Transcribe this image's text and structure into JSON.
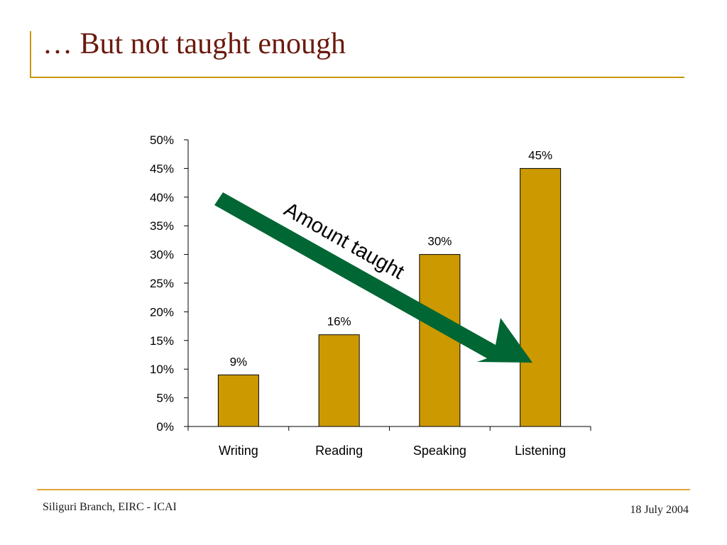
{
  "slide": {
    "title": "… But not taught enough",
    "footer_left": "Siliguri Branch, EIRC - ICAI",
    "footer_right": "18 July 2004"
  },
  "colors": {
    "bar": "#cc9900",
    "arrow": "#006633",
    "title": "#6b1a0e",
    "rule": "#c8960a"
  },
  "chart_data": {
    "type": "bar",
    "categories": [
      "Writing",
      "Reading",
      "Speaking",
      "Listening"
    ],
    "values": [
      9,
      16,
      30,
      45
    ],
    "data_labels": [
      "9%",
      "16%",
      "30%",
      "45%"
    ],
    "ylim": [
      0,
      50
    ],
    "y_ticks": [
      "0%",
      "5%",
      "10%",
      "15%",
      "20%",
      "25%",
      "30%",
      "35%",
      "40%",
      "45%",
      "50%"
    ],
    "title": "",
    "xlabel": "",
    "ylabel": "",
    "grid": false,
    "annotation": {
      "text": "Amount taught",
      "shape": "arrow",
      "direction": "down-right"
    }
  }
}
